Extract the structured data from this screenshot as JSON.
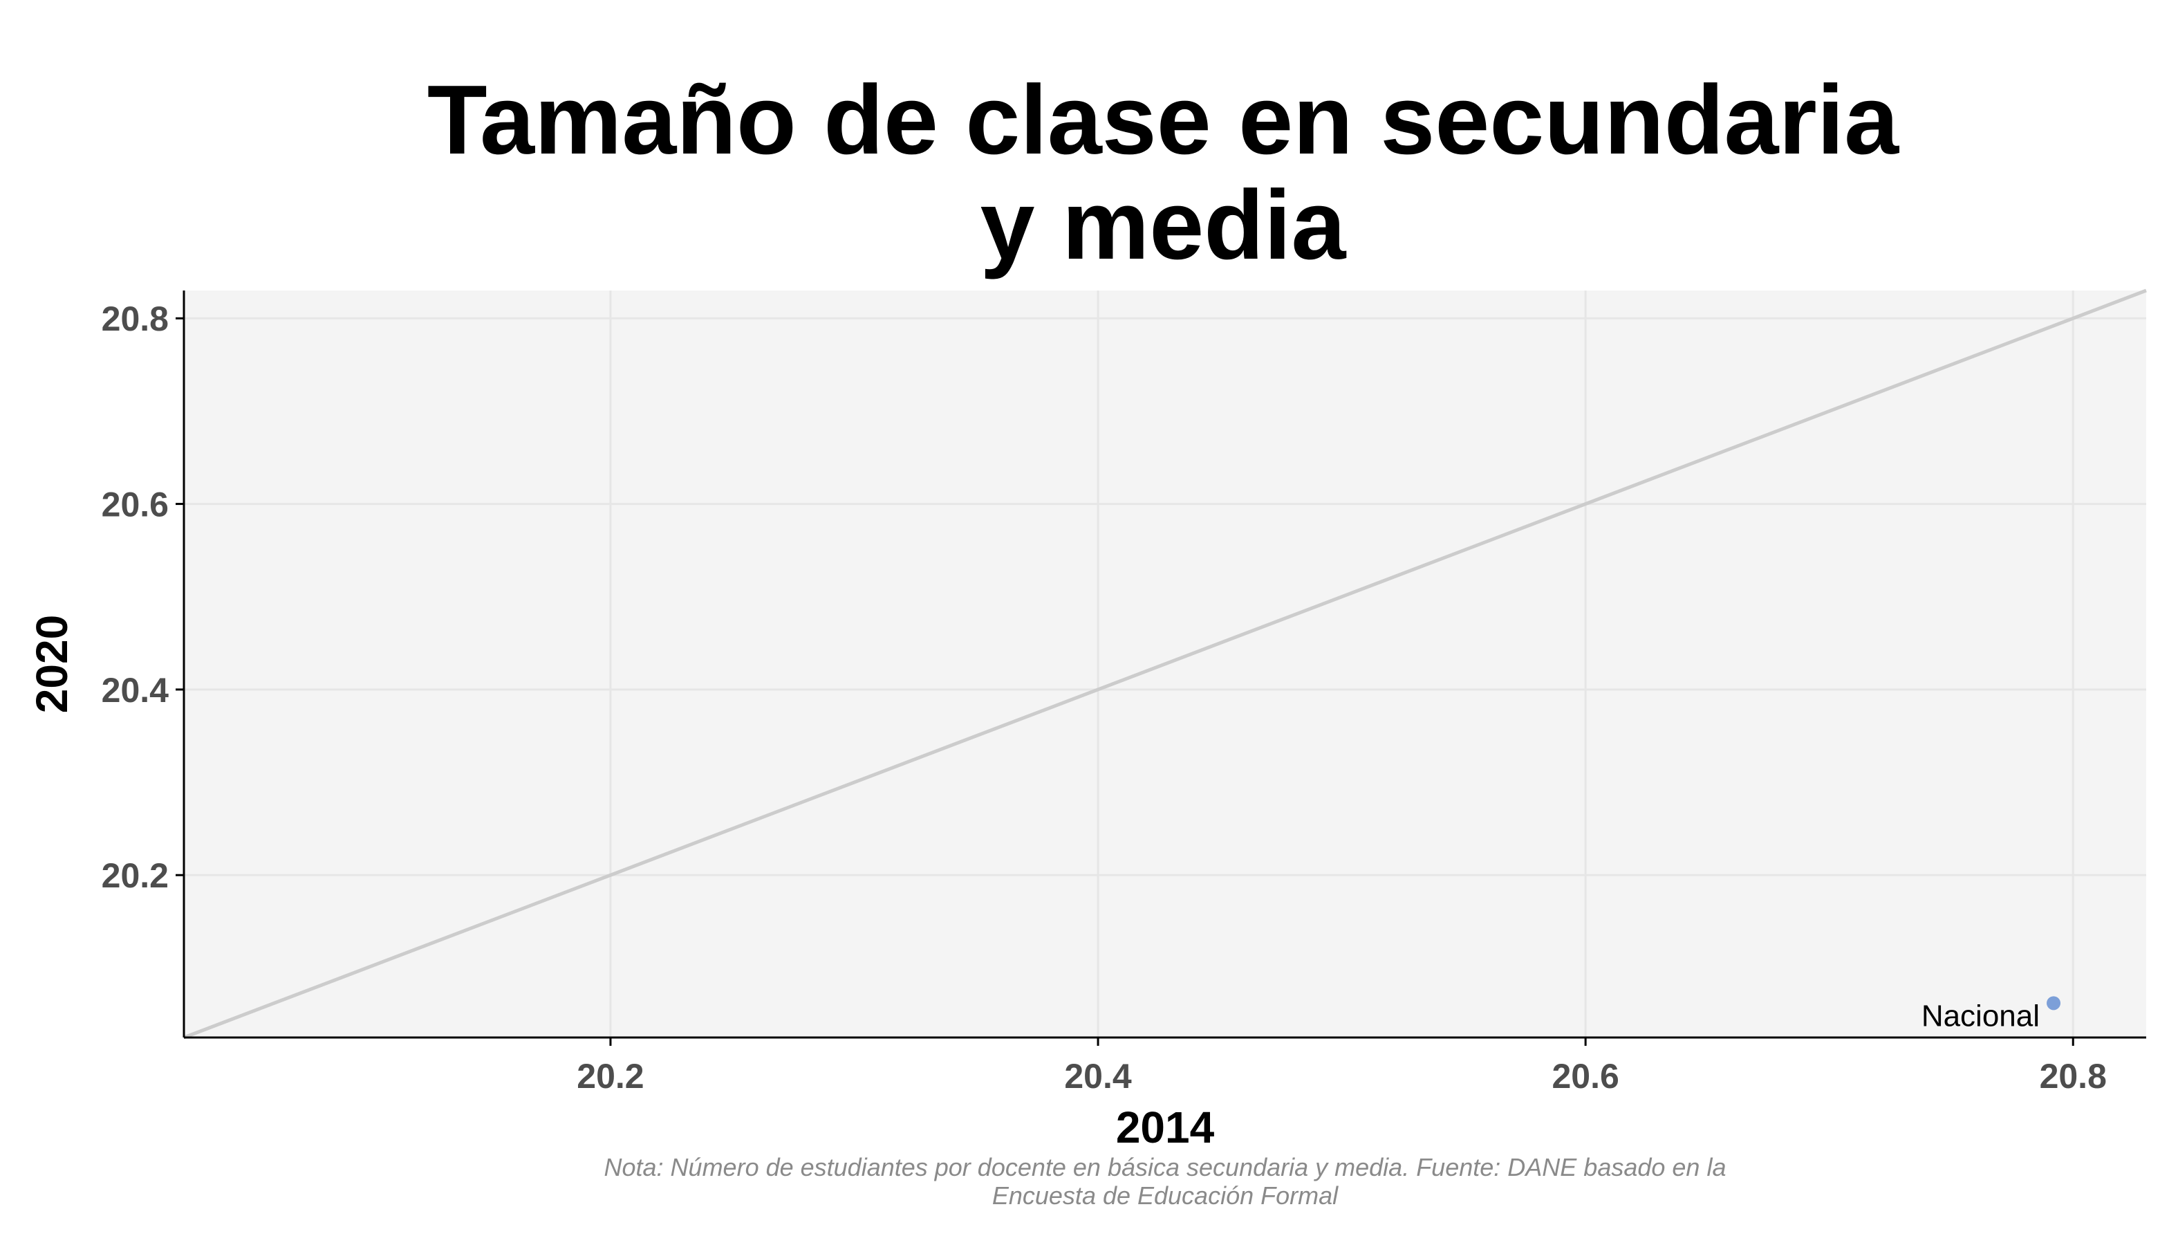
{
  "chart_data": {
    "type": "scatter",
    "title_lines": [
      "Tamaño de clase en secundaria",
      "y media"
    ],
    "xlabel": "2014",
    "ylabel": "2020",
    "xlim": [
      20.025,
      20.83
    ],
    "ylim": [
      20.025,
      20.83
    ],
    "x_ticks": [
      20.2,
      20.4,
      20.6,
      20.8
    ],
    "y_ticks": [
      20.2,
      20.4,
      20.6,
      20.8
    ],
    "x_tick_labels": [
      "20.2",
      "20.4",
      "20.6",
      "20.8"
    ],
    "y_tick_labels": [
      "20.2",
      "20.4",
      "20.6",
      "20.8"
    ],
    "grid": true,
    "reference_line": "y = x",
    "points": [
      {
        "label": "Nacional",
        "x": 20.792,
        "y": 20.062,
        "color": "#7c9fd8"
      }
    ],
    "caption_lines": [
      "Nota: Número de estudiantes por docente en básica secundaria y media. Fuente: DANE basado en la",
      "Encuesta de Educación Formal"
    ],
    "colors": {
      "panel_background": "#f4f4f4",
      "grid": "#e6e6e6",
      "reference_line": "#cccccc",
      "axis": "#000000"
    }
  }
}
